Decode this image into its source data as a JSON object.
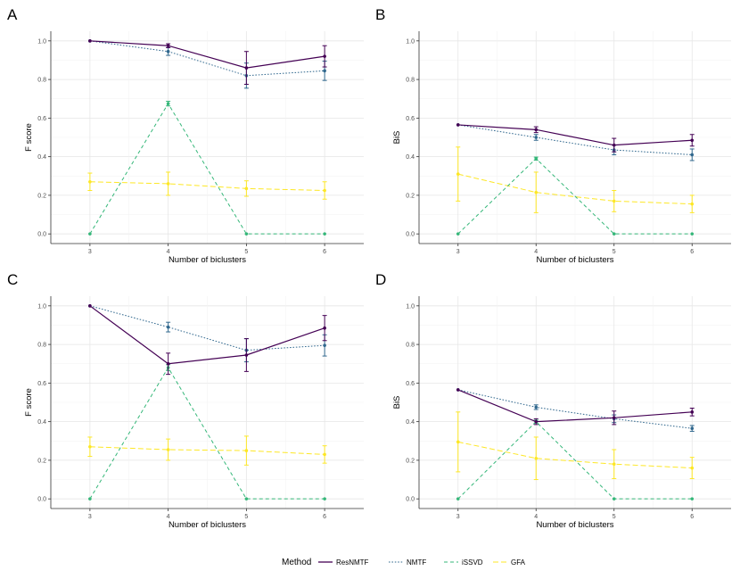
{
  "legend": {
    "title": "Method",
    "items": [
      {
        "name": "ResNMTF",
        "color": "#440154",
        "dash": "solid"
      },
      {
        "name": "NMTF",
        "color": "#31688E",
        "dash": "dotted"
      },
      {
        "name": "iSSVD",
        "color": "#35B779",
        "dash": "dashed"
      },
      {
        "name": "GFA",
        "color": "#FDE725",
        "dash": "longdash"
      }
    ]
  },
  "chart_data": [
    {
      "panel": "A",
      "type": "line",
      "xlabel": "Number of biclusters",
      "ylabel": "F score",
      "x": [
        3,
        4,
        5,
        6
      ],
      "xlim": [
        2.5,
        6.5
      ],
      "ylim": [
        -0.05,
        1.05
      ],
      "yticks": [
        "0.0",
        "0.2",
        "0.4",
        "0.6",
        "0.8",
        "1.0"
      ],
      "xticks": [
        "3",
        "4",
        "5",
        "6"
      ],
      "series": [
        {
          "name": "ResNMTF",
          "values": [
            1.0,
            0.975,
            0.86,
            0.92
          ],
          "errors": [
            0.003,
            0.01,
            0.085,
            0.055
          ]
        },
        {
          "name": "NMTF",
          "values": [
            1.0,
            0.945,
            0.82,
            0.845
          ],
          "errors": [
            0.003,
            0.02,
            0.065,
            0.05
          ]
        },
        {
          "name": "iSSVD",
          "values": [
            0.0,
            0.675,
            0.0,
            0.0
          ],
          "errors": [
            0,
            0.012,
            0,
            0
          ]
        },
        {
          "name": "GFA",
          "values": [
            0.27,
            0.26,
            0.235,
            0.225
          ],
          "errors": [
            0.045,
            0.06,
            0.04,
            0.045
          ]
        }
      ]
    },
    {
      "panel": "B",
      "type": "line",
      "xlabel": "Number of biclusters",
      "ylabel": "BiS",
      "x": [
        3,
        4,
        5,
        6
      ],
      "xlim": [
        2.5,
        6.5
      ],
      "ylim": [
        -0.05,
        1.05
      ],
      "yticks": [
        "0.0",
        "0.2",
        "0.4",
        "0.6",
        "0.8",
        "1.0"
      ],
      "xticks": [
        "3",
        "4",
        "5",
        "6"
      ],
      "series": [
        {
          "name": "ResNMTF",
          "values": [
            0.565,
            0.54,
            0.46,
            0.485
          ],
          "errors": [
            0.003,
            0.015,
            0.035,
            0.03
          ]
        },
        {
          "name": "NMTF",
          "values": [
            0.565,
            0.5,
            0.435,
            0.41
          ],
          "errors": [
            0.003,
            0.015,
            0.025,
            0.03
          ]
        },
        {
          "name": "iSSVD",
          "values": [
            0.0,
            0.39,
            0.0,
            0.0
          ],
          "errors": [
            0,
            0.008,
            0,
            0
          ]
        },
        {
          "name": "GFA",
          "values": [
            0.31,
            0.215,
            0.17,
            0.155
          ],
          "errors": [
            0.14,
            0.105,
            0.055,
            0.045
          ]
        }
      ]
    },
    {
      "panel": "C",
      "type": "line",
      "xlabel": "Number of biclusters",
      "ylabel": "F score",
      "x": [
        3,
        4,
        5,
        6
      ],
      "xlim": [
        2.5,
        6.5
      ],
      "ylim": [
        -0.05,
        1.05
      ],
      "yticks": [
        "0.0",
        "0.2",
        "0.4",
        "0.6",
        "0.8",
        "1.0"
      ],
      "xticks": [
        "3",
        "4",
        "5",
        "6"
      ],
      "series": [
        {
          "name": "ResNMTF",
          "values": [
            1.0,
            0.7,
            0.745,
            0.885
          ],
          "errors": [
            0.003,
            0.055,
            0.085,
            0.065
          ]
        },
        {
          "name": "NMTF",
          "values": [
            1.0,
            0.89,
            0.77,
            0.795
          ],
          "errors": [
            0.003,
            0.025,
            0.06,
            0.055
          ]
        },
        {
          "name": "iSSVD",
          "values": [
            0.0,
            0.68,
            0.0,
            0.0
          ],
          "errors": [
            0,
            0.015,
            0,
            0
          ]
        },
        {
          "name": "GFA",
          "values": [
            0.27,
            0.255,
            0.25,
            0.23
          ],
          "errors": [
            0.05,
            0.055,
            0.075,
            0.045
          ]
        }
      ]
    },
    {
      "panel": "D",
      "type": "line",
      "xlabel": "Number of biclusters",
      "ylabel": "BiS",
      "x": [
        3,
        4,
        5,
        6
      ],
      "xlim": [
        2.5,
        6.5
      ],
      "ylim": [
        -0.05,
        1.05
      ],
      "yticks": [
        "0.0",
        "0.2",
        "0.4",
        "0.6",
        "0.8",
        "1.0"
      ],
      "xticks": [
        "3",
        "4",
        "5",
        "6"
      ],
      "series": [
        {
          "name": "ResNMTF",
          "values": [
            0.565,
            0.4,
            0.42,
            0.45
          ],
          "errors": [
            0.003,
            0.015,
            0.035,
            0.02
          ]
        },
        {
          "name": "NMTF",
          "values": [
            0.565,
            0.475,
            0.415,
            0.365
          ],
          "errors": [
            0.003,
            0.012,
            0.02,
            0.015
          ]
        },
        {
          "name": "iSSVD",
          "values": [
            0.0,
            0.4,
            0.0,
            0.0
          ],
          "errors": [
            0,
            0.008,
            0,
            0
          ]
        },
        {
          "name": "GFA",
          "values": [
            0.295,
            0.21,
            0.18,
            0.16
          ],
          "errors": [
            0.155,
            0.11,
            0.075,
            0.055
          ]
        }
      ]
    }
  ]
}
